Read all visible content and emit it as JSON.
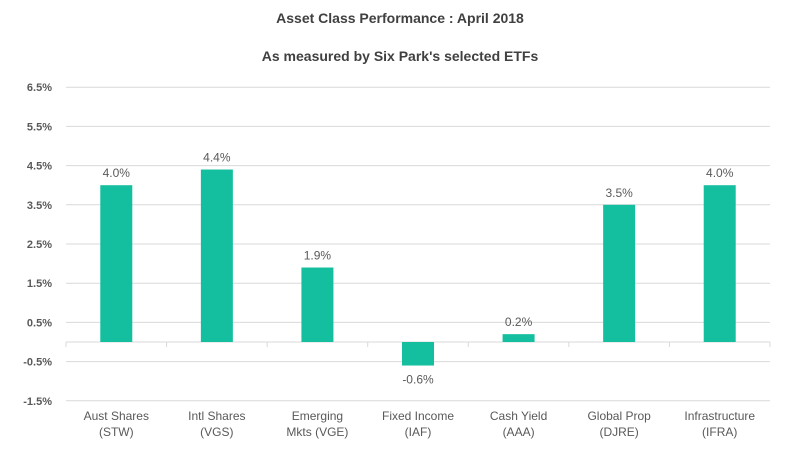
{
  "chart_data": {
    "type": "bar",
    "title": "Asset Class Performance : April 2018",
    "subtitle": "As measured by Six Park's selected ETFs",
    "categories": [
      [
        "Aust Shares",
        "(STW)"
      ],
      [
        "Intl Shares",
        "(VGS)"
      ],
      [
        "Emerging",
        "Mkts (VGE)"
      ],
      [
        "Fixed Income",
        "(IAF)"
      ],
      [
        "Cash Yield",
        "(AAA)"
      ],
      [
        "Global Prop",
        "(DJRE)"
      ],
      [
        "Infrastructure",
        "(IFRA)"
      ]
    ],
    "values": [
      4.0,
      4.4,
      1.9,
      -0.6,
      0.2,
      3.5,
      4.0
    ],
    "data_labels": [
      "4.0%",
      "4.4%",
      "1.9%",
      "-0.6%",
      "0.2%",
      "3.5%",
      "4.0%"
    ],
    "yticks": [
      6.5,
      5.5,
      4.5,
      3.5,
      2.5,
      1.5,
      0.5,
      -0.5,
      -1.5
    ],
    "ytick_labels": [
      "6.5%",
      "5.5%",
      "4.5%",
      "3.5%",
      "2.5%",
      "1.5%",
      "0.5%",
      "-0.5%",
      "-1.5%"
    ],
    "ylim": [
      -1.5,
      6.5
    ],
    "grid": true,
    "xlabel": "",
    "ylabel": "",
    "bar_color": "#14BF9F",
    "grid_color": "#D9D9D9"
  }
}
